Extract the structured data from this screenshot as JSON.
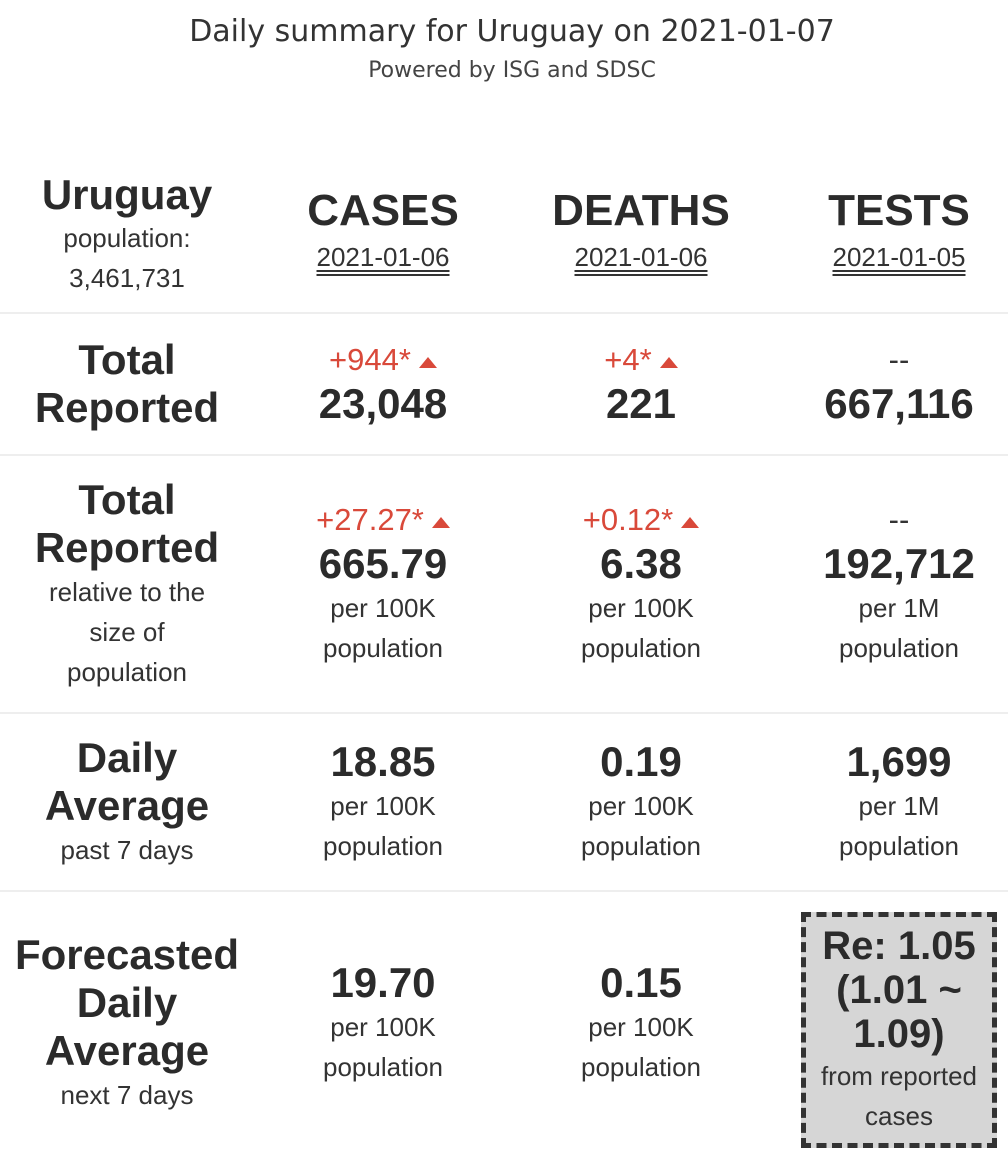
{
  "header": {
    "title": "Daily summary for Uruguay on 2021-01-07",
    "subtitle": "Powered by ISG and SDSC"
  },
  "country": {
    "name": "Uruguay",
    "population_label": "population:",
    "population_value": "3,461,731"
  },
  "columns": {
    "cases": {
      "label": "CASES",
      "date": "2021-01-06"
    },
    "deaths": {
      "label": "DEATHS",
      "date": "2021-01-06"
    },
    "tests": {
      "label": "TESTS",
      "date": "2021-01-05"
    }
  },
  "total_reported": {
    "label_line1": "Total",
    "label_line2": "Reported",
    "cases_change": "+944*",
    "cases_value": "23,048",
    "deaths_change": "+4*",
    "deaths_value": "221",
    "tests_change": "--",
    "tests_value": "667,116"
  },
  "total_relative": {
    "label_line1": "Total",
    "label_line2": "Reported",
    "label_sub1": "relative to the",
    "label_sub2": "size of",
    "label_sub3": "population",
    "cases_change": "+27.27*",
    "cases_value": "665.79",
    "cases_unit1": "per 100K",
    "cases_unit2": "population",
    "deaths_change": "+0.12*",
    "deaths_value": "6.38",
    "deaths_unit1": "per 100K",
    "deaths_unit2": "population",
    "tests_change": "--",
    "tests_value": "192,712",
    "tests_unit1": "per 1M",
    "tests_unit2": "population"
  },
  "daily_average": {
    "label_line1": "Daily",
    "label_line2": "Average",
    "label_sub": "past 7 days",
    "cases_value": "18.85",
    "cases_unit1": "per 100K",
    "cases_unit2": "population",
    "deaths_value": "0.19",
    "deaths_unit1": "per 100K",
    "deaths_unit2": "population",
    "tests_value": "1,699",
    "tests_unit1": "per 1M",
    "tests_unit2": "population"
  },
  "forecast": {
    "label_line1": "Forecasted",
    "label_line2": "Daily",
    "label_line3": "Average",
    "label_sub": "next 7 days",
    "cases_value": "19.70",
    "cases_unit1": "per 100K",
    "cases_unit2": "population",
    "deaths_value": "0.15",
    "deaths_unit1": "per 100K",
    "deaths_unit2": "population",
    "re_line1": "Re: 1.05",
    "re_line2": "(1.01 ~",
    "re_line3": "1.09)",
    "re_sub1": "from reported",
    "re_sub2": "cases"
  },
  "colors": {
    "increase": "#d9493a",
    "text": "#2b2b2b",
    "re_box_bg": "#d6d6d6"
  }
}
